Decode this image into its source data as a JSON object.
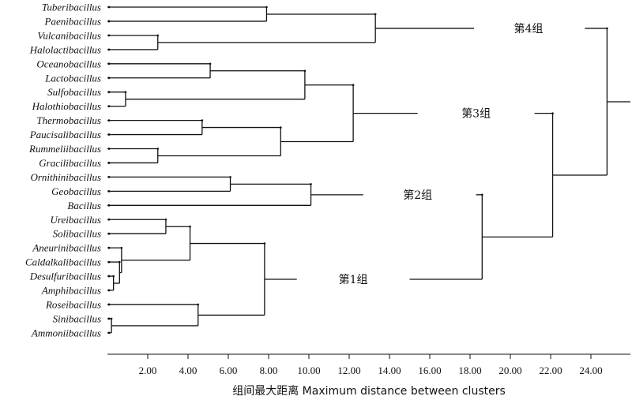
{
  "leaves": [
    "Tuberibacillus",
    "Paenibacillus",
    "Vulcanibacillus",
    "Halolactibacillus",
    "Oceanobacillus",
    "Lactobacillus",
    "Sulfobacillus",
    "Halothiobacillus",
    "Thermobacillus",
    "Paucisalibacillus",
    "Rummeliibacillus",
    "Gracilibacillus",
    "Ornithinibacillus",
    "Geobacillus",
    "Bacillus",
    "Ureibacillus",
    "Solibacillus",
    "Aneurinibacillus",
    "Caldalkalibacillus",
    "Desulfuribacillus",
    "Amphibacillus",
    "Roseibacillus",
    "Sinibacillus",
    "Ammoniibacillus"
  ],
  "axis": {
    "title": "组间最大距离 Maximum distance between clusters",
    "min": 0,
    "max": 26,
    "ticks": [
      "2.00",
      "4.00",
      "6.00",
      "8.00",
      "10.00",
      "12.00",
      "14.00",
      "16.00",
      "18.00",
      "20.00",
      "22.00",
      "24.00"
    ]
  },
  "groups": {
    "g4": "第4组",
    "g3": "第3组",
    "g2": "第2组",
    "g1": "第1组"
  },
  "merges": [
    {
      "id": "n1",
      "children": [
        "L0",
        "L1"
      ],
      "height": 7.9
    },
    {
      "id": "n2",
      "children": [
        "L2",
        "L3"
      ],
      "height": 2.5
    },
    {
      "id": "n3",
      "children": [
        "n1",
        "n2"
      ],
      "height": 13.3
    },
    {
      "id": "n4",
      "children": [
        "L4",
        "L5"
      ],
      "height": 5.1
    },
    {
      "id": "n5",
      "children": [
        "L6",
        "L7"
      ],
      "height": 0.9
    },
    {
      "id": "n6",
      "children": [
        "n4",
        "n5"
      ],
      "height": 9.8
    },
    {
      "id": "n7",
      "children": [
        "L8",
        "L9"
      ],
      "height": 4.7
    },
    {
      "id": "n8",
      "children": [
        "L10",
        "L11"
      ],
      "height": 2.5
    },
    {
      "id": "n9",
      "children": [
        "n7",
        "n8"
      ],
      "height": 8.6
    },
    {
      "id": "n10",
      "children": [
        "n6",
        "n9"
      ],
      "height": 12.2
    },
    {
      "id": "n11",
      "children": [
        "L12",
        "L13"
      ],
      "height": 6.1
    },
    {
      "id": "n12",
      "children": [
        "n11",
        "L14"
      ],
      "height": 10.1
    },
    {
      "id": "n13",
      "children": [
        "L15",
        "L16"
      ],
      "height": 2.9
    },
    {
      "id": "n14",
      "children": [
        "L19",
        "L20"
      ],
      "height": 0.3
    },
    {
      "id": "n15",
      "children": [
        "n14",
        "L18"
      ],
      "height": 0.6
    },
    {
      "id": "n16",
      "children": [
        "L17",
        "n15"
      ],
      "height": 0.7
    },
    {
      "id": "n17",
      "children": [
        "n13",
        "n16"
      ],
      "height": 4.1
    },
    {
      "id": "n18",
      "children": [
        "L22",
        "L23"
      ],
      "height": 0.2
    },
    {
      "id": "n19",
      "children": [
        "L21",
        "n18"
      ],
      "height": 4.5
    },
    {
      "id": "n20",
      "children": [
        "n17",
        "n19"
      ],
      "height": 7.8
    }
  ],
  "links": [
    {
      "id": "g4",
      "child": "n3",
      "gap_from": 18.2,
      "gap_to": 23.7,
      "height": 24.8,
      "label_x": 20.9
    },
    {
      "id": "g3",
      "child": "n10",
      "gap_from": 15.4,
      "gap_to": 21.2,
      "height": 22.1,
      "label_x": 18.3
    },
    {
      "id": "g2",
      "child": "n12",
      "gap_from": 12.7,
      "gap_to": 18.3,
      "height": 18.6,
      "label_x": 15.4
    },
    {
      "id": "g1",
      "child": "n20",
      "gap_from": 9.4,
      "gap_to": 15.0,
      "height": 18.6,
      "label_x": 12.2
    }
  ],
  "upper_joins": [
    {
      "id": "j21",
      "children": [
        "g2",
        "g1"
      ],
      "height": 18.6
    },
    {
      "id": "j22",
      "children": [
        "g3",
        "j21"
      ],
      "height": 22.1
    },
    {
      "id": "j23",
      "children": [
        "g4",
        "j22"
      ],
      "height": 24.8
    }
  ],
  "root_tail": 26
}
